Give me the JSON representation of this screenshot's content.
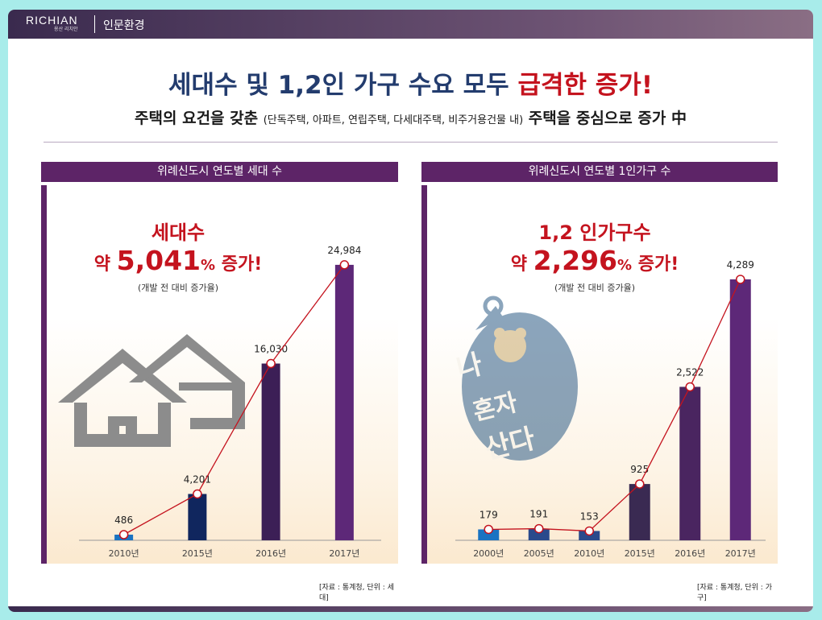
{
  "header": {
    "logo": "RICHIAN",
    "logo_sub": "용산 리치안",
    "section": "인문환경"
  },
  "headline": {
    "part1": "세대수 및 1,2인 가구 수요 모두",
    "part2": "급격한 증가!",
    "colors": {
      "navy": "#233c6e",
      "red": "#c4131e"
    }
  },
  "subline": {
    "part1": "주택의 요건을 갖춘",
    "part2": "(단독주택, 아파트, 연립주택, 다세대주택, 비주거용건물 내)",
    "part3": "주택을 중심으로 증가 中"
  },
  "left_panel": {
    "title": "위례신도시 연도별 세대 수",
    "callout_title": "세대수",
    "callout_prefix": "약",
    "callout_value": "5,041",
    "callout_pct": "%",
    "callout_suffix": "증가!",
    "callout_note": "(개발 전 대비 증가율)",
    "source": "[자료 : 통계청, 단위 : 세대]"
  },
  "right_panel": {
    "title": "위례신도시 연도별 1인가구 수",
    "callout_title": "1,2 인가구수",
    "callout_prefix": "약",
    "callout_value": "2,296",
    "callout_pct": "%",
    "callout_suffix": "증가!",
    "callout_note": "(개발 전 대비 증가율)",
    "stamp_line1": "나",
    "stamp_line2": "혼자",
    "stamp_line3": "산다",
    "source": "[자료 : 통계청, 단위 : 가구]"
  },
  "chart_data": [
    {
      "type": "bar",
      "categories": [
        "2010년",
        "2015년",
        "2016년",
        "2017년"
      ],
      "values": [
        486,
        4201,
        16030,
        24984
      ],
      "labels": [
        "486",
        "4,201",
        "16,030",
        "24,984"
      ],
      "ylim": [
        0,
        26000
      ],
      "overlay": "line",
      "grid": false,
      "colors": [
        "#1a73c2",
        "#10265e",
        "#3c1f56",
        "#5d2878"
      ]
    },
    {
      "type": "bar",
      "categories": [
        "2000년",
        "2005년",
        "2010년",
        "2015년",
        "2016년",
        "2017년"
      ],
      "values": [
        179,
        191,
        153,
        925,
        2522,
        4289
      ],
      "labels": [
        "179",
        "191",
        "153",
        "925",
        "2,522",
        "4,289"
      ],
      "ylim": [
        0,
        4500
      ],
      "overlay": "line",
      "grid": false,
      "colors": [
        "#1a73c2",
        "#2a4a8c",
        "#2a4a8c",
        "#3a2a52",
        "#4a2560",
        "#5d2878"
      ]
    }
  ]
}
